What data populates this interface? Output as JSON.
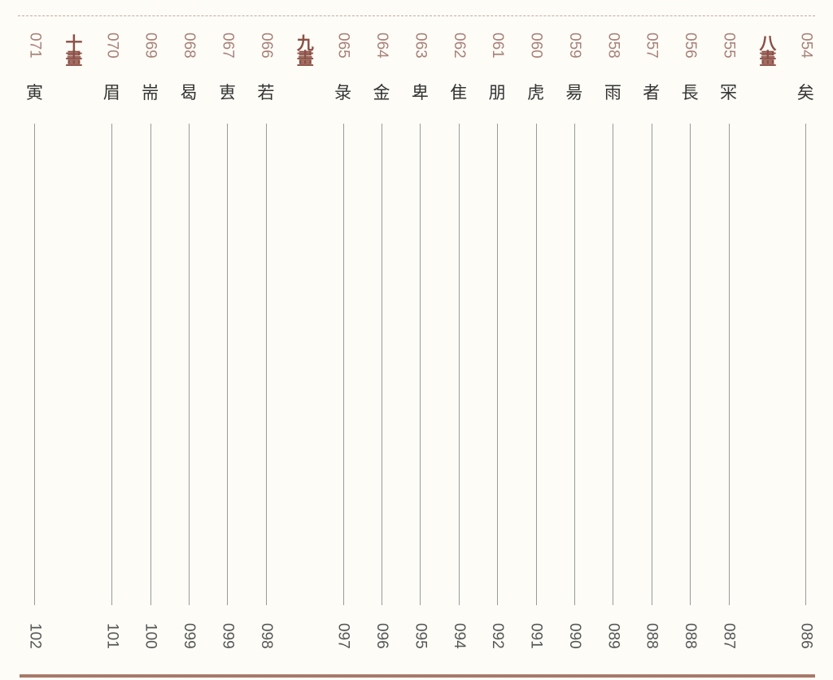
{
  "colors": {
    "accent": "#8c4f45",
    "rule": "#a7796b"
  },
  "entries": [
    {
      "type": "entry",
      "number": "054",
      "char": "矣",
      "page": "086"
    },
    {
      "type": "header",
      "label": "八畫"
    },
    {
      "type": "entry",
      "number": "055",
      "char": "冞",
      "page": "087"
    },
    {
      "type": "entry",
      "number": "056",
      "char": "長",
      "page": "088"
    },
    {
      "type": "entry",
      "number": "057",
      "char": "者",
      "page": "088"
    },
    {
      "type": "entry",
      "number": "058",
      "char": "雨",
      "page": "089"
    },
    {
      "type": "entry",
      "number": "059",
      "char": "昜",
      "page": "090"
    },
    {
      "type": "entry",
      "number": "060",
      "char": "虎",
      "page": "091"
    },
    {
      "type": "entry",
      "number": "061",
      "char": "朋",
      "page": "092"
    },
    {
      "type": "entry",
      "number": "062",
      "char": "隹",
      "page": "094"
    },
    {
      "type": "entry",
      "number": "063",
      "char": "卑",
      "page": "095"
    },
    {
      "type": "entry",
      "number": "064",
      "char": "金",
      "page": "096"
    },
    {
      "type": "entry",
      "number": "065",
      "char": "彔",
      "page": "097"
    },
    {
      "type": "header",
      "label": "九畫"
    },
    {
      "type": "entry",
      "number": "066",
      "char": "若",
      "page": "098"
    },
    {
      "type": "entry",
      "number": "067",
      "char": "叀",
      "page": "099"
    },
    {
      "type": "entry",
      "number": "068",
      "char": "曷",
      "page": "099"
    },
    {
      "type": "entry",
      "number": "069",
      "char": "耑",
      "page": "100"
    },
    {
      "type": "entry",
      "number": "070",
      "char": "眉",
      "page": "101"
    },
    {
      "type": "header",
      "label": "十畫"
    },
    {
      "type": "entry",
      "number": "071",
      "char": "寅",
      "page": "102"
    }
  ]
}
